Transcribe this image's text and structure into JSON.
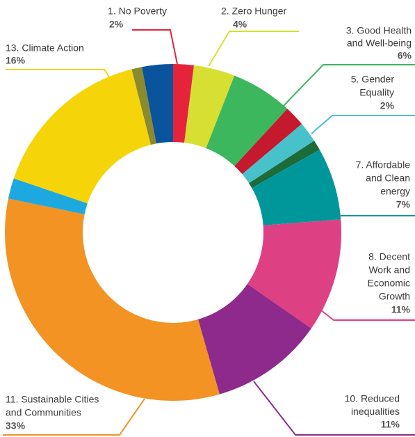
{
  "chart_data": {
    "type": "donut",
    "categories": [
      [
        "1. No Poverty"
      ],
      [
        "2. Zero Hunger"
      ],
      [
        "3. Good Health",
        "and Well-being"
      ],
      null,
      [
        "5. Gender",
        "Equality"
      ],
      null,
      [
        "7. Affordable",
        "and Clean",
        "energy"
      ],
      [
        "8. Decent",
        "Work and",
        "Economic",
        "Growth"
      ],
      [
        "10. Reduced",
        "inequalities"
      ],
      [
        "11. Sustainable Cities",
        "and Communities"
      ],
      null,
      [
        "13. Climate Action"
      ],
      null,
      null
    ],
    "values": [
      2,
      4,
      6,
      2,
      2,
      1,
      7,
      11,
      11,
      33,
      2,
      16,
      1,
      3
    ],
    "value_labels": [
      "2%",
      "4%",
      "6%",
      null,
      "2%",
      null,
      "7%",
      "11%",
      "11%",
      "33%",
      null,
      "16%",
      null,
      null
    ],
    "colors": [
      "#e5243b",
      "#d6df32",
      "#3cb75d",
      "#c5192d",
      "#47c2cb",
      "#1c6b39",
      "#00979b",
      "#dd4083",
      "#8e2a8c",
      "#f39324",
      "#1ea8e0",
      "#f5d50a",
      "#8a8a2f",
      "#0a539d"
    ]
  }
}
